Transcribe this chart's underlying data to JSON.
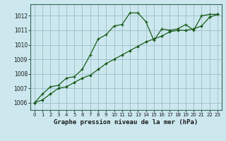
{
  "title": "Graphe pression niveau de la mer (hPa)",
  "bg_color": "#cce8ee",
  "grid_color": "#99bbcc",
  "line_color": "#1a5c1a",
  "xlim": [
    -0.5,
    23.5
  ],
  "ylim": [
    1005.5,
    1012.8
  ],
  "yticks": [
    1006,
    1007,
    1008,
    1009,
    1010,
    1011,
    1012
  ],
  "xticks": [
    0,
    1,
    2,
    3,
    4,
    5,
    6,
    7,
    8,
    9,
    10,
    11,
    12,
    13,
    14,
    15,
    16,
    17,
    18,
    19,
    20,
    21,
    22,
    23
  ],
  "series1_x": [
    0,
    1,
    2,
    3,
    4,
    5,
    6,
    7,
    8,
    9,
    10,
    11,
    12,
    13,
    14,
    15,
    16,
    17,
    18,
    19,
    20,
    21,
    22,
    23
  ],
  "series1_y": [
    1006.0,
    1006.6,
    1007.1,
    1007.2,
    1007.7,
    1007.8,
    1008.3,
    1009.3,
    1010.4,
    1010.7,
    1011.3,
    1011.4,
    1012.2,
    1012.2,
    1011.6,
    1010.3,
    1011.1,
    1011.0,
    1011.1,
    1011.4,
    1011.0,
    1012.0,
    1012.1,
    1012.1
  ],
  "series2_x": [
    0,
    1,
    2,
    3,
    4,
    5,
    6,
    7,
    8,
    9,
    10,
    11,
    12,
    13,
    14,
    15,
    16,
    17,
    18,
    19,
    20,
    21,
    22,
    23
  ],
  "series2_y": [
    1006.0,
    1006.2,
    1006.6,
    1007.0,
    1007.1,
    1007.4,
    1007.7,
    1007.9,
    1008.3,
    1008.7,
    1009.0,
    1009.3,
    1009.6,
    1009.9,
    1010.2,
    1010.4,
    1010.6,
    1010.9,
    1011.0,
    1011.0,
    1011.1,
    1011.3,
    1011.9,
    1012.1
  ],
  "title_fontsize": 6.5,
  "tick_fontsize": 5.0
}
